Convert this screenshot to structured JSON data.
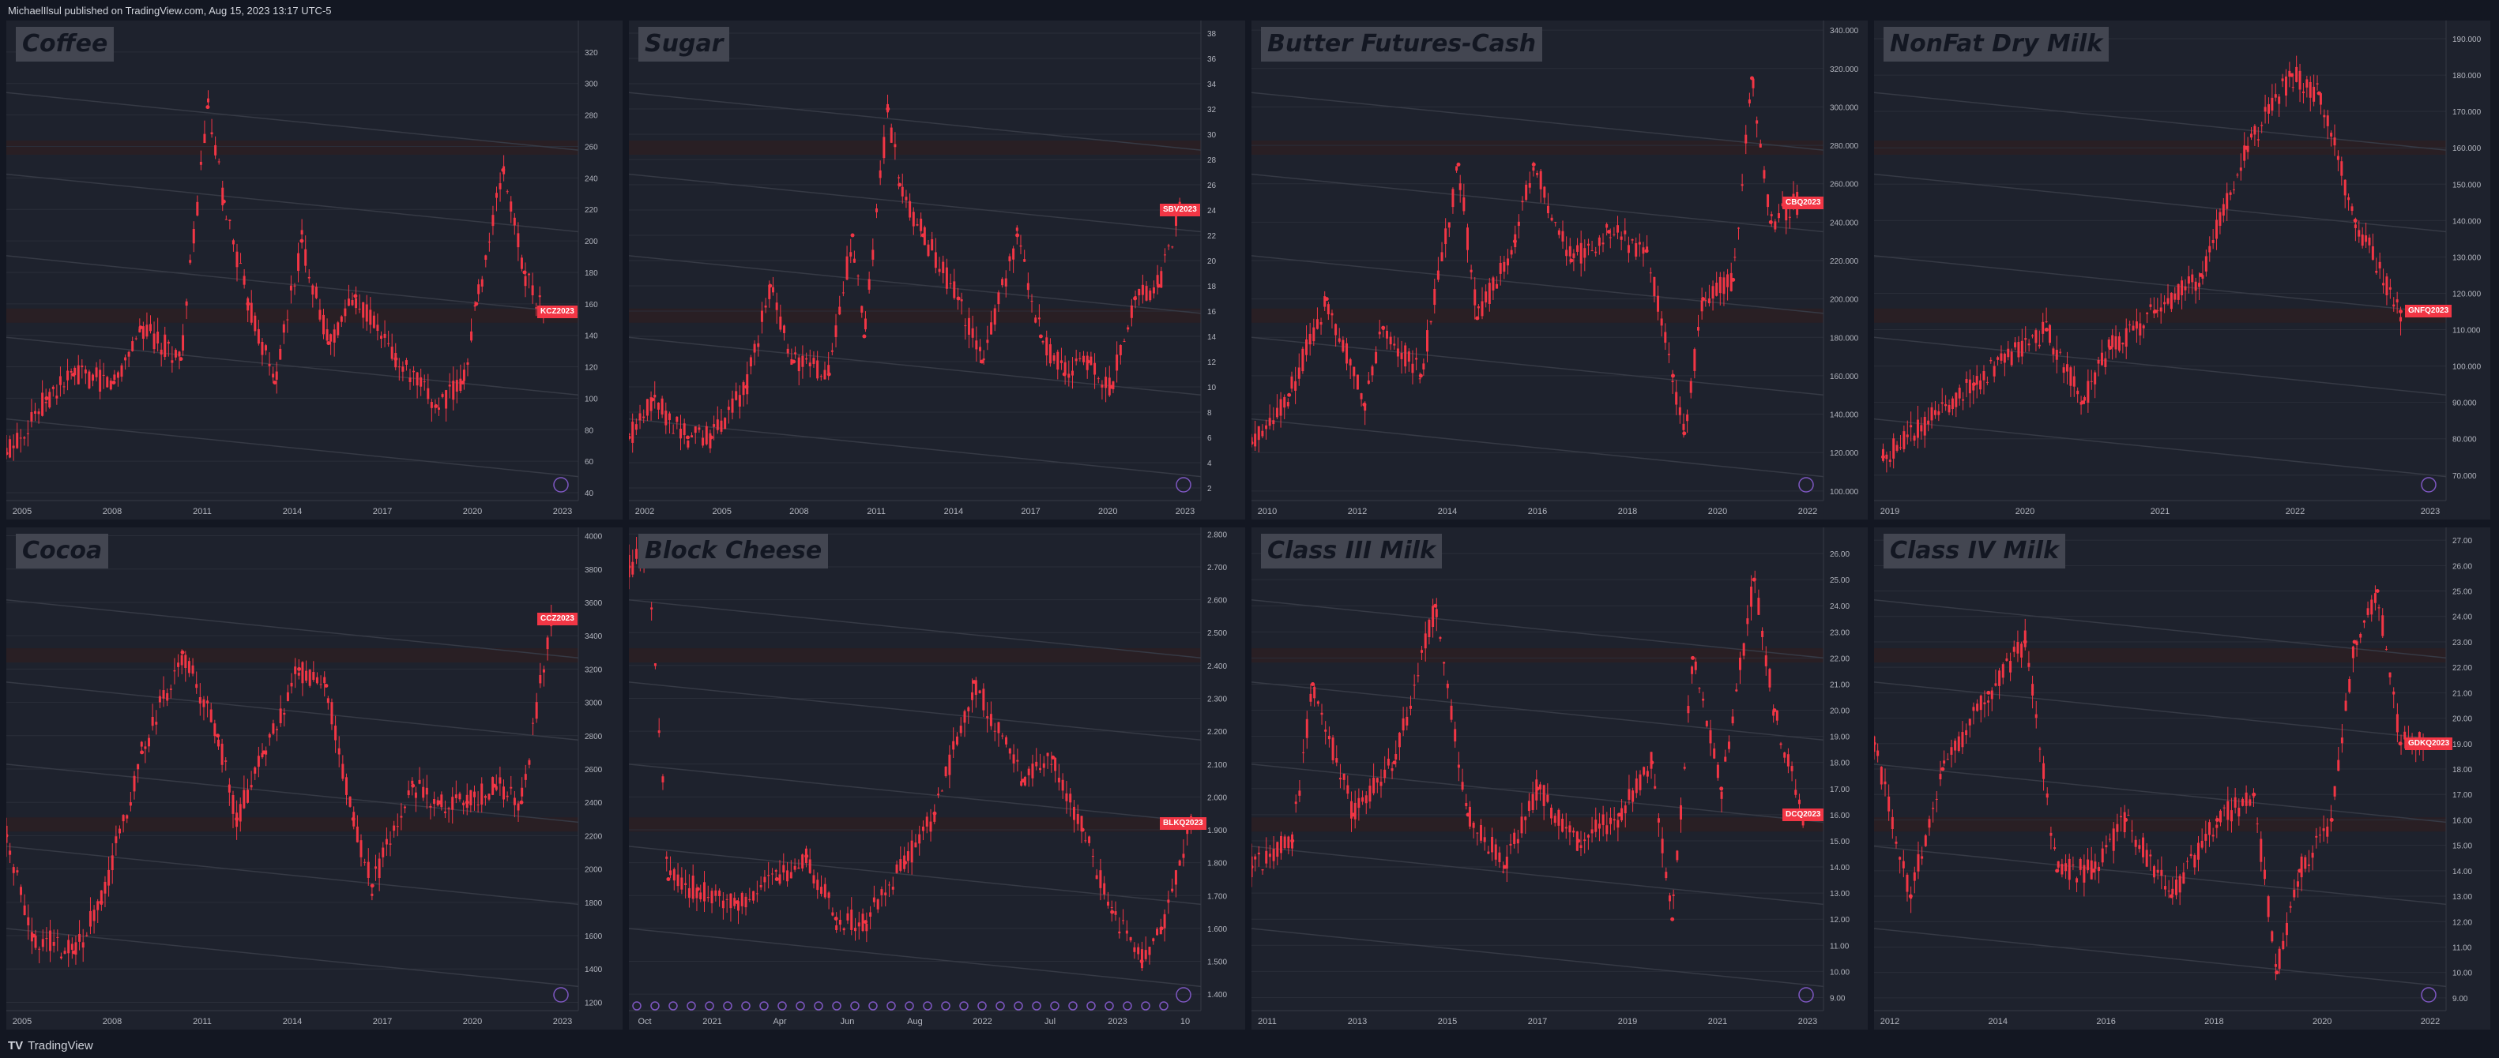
{
  "header": {
    "attribution": "MichaelIlsul published on TradingView.com, Aug 15, 2023 13:17 UTC-5"
  },
  "footer": {
    "brand_icon": "TV",
    "brand_text": "TradingView"
  },
  "colors": {
    "background": "#131722",
    "panel": "#1e222d",
    "candle": "#f23645",
    "title_bg": "#434651",
    "zone": "#2a1f24",
    "event_icon": "#7e57c2"
  },
  "chart_data": [
    {
      "type": "line",
      "title": "Coffee",
      "badge": "KCZ2023",
      "x": [
        2003.5,
        2005,
        2006,
        2007.5,
        2008.5,
        2010,
        2011,
        2011.6,
        2012.5,
        2013.5,
        2014.5,
        2015.5,
        2016.5,
        2018,
        2019.5,
        2020.5,
        2021,
        2022,
        2022.8,
        2023.5
      ],
      "y": [
        65,
        100,
        115,
        110,
        145,
        125,
        285,
        225,
        160,
        110,
        200,
        135,
        165,
        125,
        95,
        110,
        160,
        245,
        180,
        155
      ],
      "ylim": [
        35,
        340
      ],
      "xlim": [
        2003.5,
        2024.8
      ],
      "yticks": [
        "320",
        "300",
        "280",
        "260",
        "240",
        "220",
        "200",
        "180",
        "160",
        "140",
        "120",
        "100",
        "80",
        "60",
        "40"
      ],
      "xticks": [
        "2005",
        "2008",
        "2011",
        "2014",
        "2017",
        "2020",
        "2023"
      ]
    },
    {
      "type": "line",
      "title": "Sugar",
      "badge": "SBV2023",
      "x": [
        2000,
        2001,
        2002.5,
        2003.5,
        2005,
        2006,
        2007,
        2008.5,
        2009.5,
        2010,
        2011,
        2011.5,
        2012.5,
        2014,
        2015,
        2016.5,
        2017.5,
        2018.5,
        2019.5,
        2020.5,
        2021.5,
        2022.5,
        2023.4
      ],
      "y": [
        6,
        9,
        6,
        6,
        10,
        18,
        12,
        11,
        22,
        14,
        32,
        26,
        22,
        17,
        12,
        22,
        14,
        11,
        12,
        10,
        17,
        18,
        24
      ],
      "ylim": [
        1,
        39
      ],
      "xlim": [
        2000,
        2024.3
      ],
      "yticks": [
        "38",
        "36",
        "34",
        "32",
        "30",
        "28",
        "26",
        "24",
        "22",
        "20",
        "18",
        "16",
        "14",
        "12",
        "10",
        "8",
        "6",
        "4",
        "2"
      ],
      "xticks": [
        "2002",
        "2005",
        "2008",
        "2011",
        "2014",
        "2017",
        "2020",
        "2023"
      ]
    },
    {
      "type": "line",
      "title": "Butter Futures-Cash",
      "badge": "CBQ2023",
      "x": [
        2009,
        2010,
        2011,
        2012,
        2012.5,
        2013.5,
        2014.5,
        2015,
        2016,
        2016.5,
        2017.5,
        2018.5,
        2019.5,
        2020.2,
        2020.5,
        2021,
        2021.8,
        2022.3,
        2022.8,
        2023.5
      ],
      "y": [
        125,
        150,
        200,
        145,
        185,
        160,
        270,
        190,
        230,
        270,
        220,
        235,
        225,
        160,
        130,
        200,
        210,
        315,
        240,
        250
      ],
      "ylim": [
        95,
        345
      ],
      "xlim": [
        2009,
        2024.2
      ],
      "yticks": [
        "340.000",
        "320.000",
        "300.000",
        "280.000",
        "260.000",
        "240.000",
        "220.000",
        "200.000",
        "180.000",
        "160.000",
        "140.000",
        "120.000",
        "100.000"
      ],
      "xticks": [
        "2010",
        "2012",
        "2014",
        "2016",
        "2018",
        "2020",
        "2022"
      ]
    },
    {
      "type": "line",
      "title": "NonFat Dry Milk",
      "badge": "GNFQ2023",
      "x": [
        2018,
        2019,
        2019.8,
        2020.2,
        2020.5,
        2021,
        2021.5,
        2022,
        2022.5,
        2022.8,
        2023.2,
        2023.7
      ],
      "y": [
        75,
        95,
        110,
        90,
        105,
        115,
        125,
        160,
        180,
        175,
        140,
        115
      ],
      "ylim": [
        63,
        195
      ],
      "xlim": [
        2017.9,
        2024.2
      ],
      "yticks": [
        "190.000",
        "180.000",
        "170.000",
        "160.000",
        "150.000",
        "140.000",
        "130.000",
        "120.000",
        "110.000",
        "100.000",
        "90.000",
        "80.000",
        "70.000"
      ],
      "xticks": [
        "2019",
        "2020",
        "2021",
        "2022",
        "2023"
      ]
    },
    {
      "type": "line",
      "title": "Cocoa",
      "badge": "CCZ2023",
      "x": [
        2003.5,
        2004.5,
        2006,
        2007,
        2008.5,
        2010,
        2011.3,
        2012,
        2013,
        2014.3,
        2015.3,
        2016.3,
        2017,
        2018.5,
        2019.5,
        2020.5,
        2021.5,
        2022.5,
        2023.6
      ],
      "y": [
        2200,
        1600,
        1500,
        1800,
        2700,
        3300,
        2800,
        2300,
        2700,
        3200,
        3100,
        2300,
        1900,
        2500,
        2400,
        2400,
        2500,
        2400,
        3500
      ],
      "ylim": [
        1150,
        4050
      ],
      "xlim": [
        2003.5,
        2024.6
      ],
      "yticks": [
        "4000",
        "3800",
        "3600",
        "3400",
        "3200",
        "3000",
        "2800",
        "2600",
        "2400",
        "2200",
        "2000",
        "1800",
        "1600",
        "1400",
        "1200"
      ],
      "xticks": [
        "2005",
        "2008",
        "2011",
        "2014",
        "2017",
        "2020",
        "2023"
      ]
    },
    {
      "type": "line",
      "title": "Block Cheese",
      "badge": "BLKQ2023",
      "x": [
        2020.75,
        2020.85,
        2020.95,
        2021.1,
        2021.3,
        2021.5,
        2021.65,
        2021.8,
        2021.95,
        2022.15,
        2022.3,
        2022.5,
        2022.75,
        2022.9,
        2023.05,
        2023.2,
        2023.35,
        2023.45,
        2023.6
      ],
      "y": [
        2.7,
        2.75,
        1.75,
        1.72,
        1.68,
        1.75,
        1.82,
        1.63,
        1.62,
        1.8,
        1.95,
        2.35,
        2.05,
        2.12,
        1.9,
        1.65,
        1.5,
        1.6,
        1.92
      ],
      "ylim": [
        1.35,
        2.82
      ],
      "xlim": [
        2020.75,
        2023.65
      ],
      "yticks": [
        "2.800",
        "2.700",
        "2.600",
        "2.500",
        "2.400",
        "2.300",
        "2.200",
        "2.100",
        "2.000",
        "1.900",
        "1.800",
        "1.700",
        "1.600",
        "1.500",
        "1.400"
      ],
      "xticks": [
        "Oct",
        "2021",
        "Apr",
        "Jun",
        "Aug",
        "2022",
        "Jul",
        "2023",
        "10"
      ],
      "annotation": "event markers along x-axis (purple circles)"
    },
    {
      "type": "line",
      "title": "Class III Milk",
      "badge": "DCQ2023",
      "x": [
        2010,
        2011,
        2011.5,
        2012.5,
        2013.5,
        2014.5,
        2015.3,
        2016.2,
        2017,
        2018,
        2019,
        2019.8,
        2020.3,
        2020.8,
        2021.5,
        2022.3,
        2022.8,
        2023.5
      ],
      "y": [
        14,
        15,
        21,
        16,
        18,
        24,
        16,
        14,
        17,
        15,
        16,
        18,
        12,
        22,
        17,
        25,
        20,
        16
      ],
      "ylim": [
        8.5,
        27
      ],
      "xlim": [
        2010,
        2024
      ],
      "yticks": [
        "26.00",
        "25.00",
        "24.00",
        "23.00",
        "22.00",
        "21.00",
        "20.00",
        "19.00",
        "18.00",
        "17.00",
        "16.00",
        "15.00",
        "14.00",
        "13.00",
        "12.00",
        "11.00",
        "10.00",
        "9.00"
      ],
      "xticks": [
        "2011",
        "2013",
        "2015",
        "2017",
        "2019",
        "2021",
        "2023"
      ]
    },
    {
      "type": "line",
      "title": "Class IV Milk",
      "badge": "GDKQ2023",
      "x": [
        2011.5,
        2012.3,
        2013,
        2014,
        2014.8,
        2015.5,
        2016.3,
        2017,
        2018,
        2019,
        2019.8,
        2020.3,
        2020.8,
        2021.5,
        2022,
        2022.5,
        2023,
        2023.5
      ],
      "y": [
        19,
        13,
        18,
        21,
        23,
        14,
        14,
        16,
        13,
        16,
        17,
        10,
        14,
        16,
        23,
        25,
        19,
        19
      ],
      "ylim": [
        8.5,
        27.5
      ],
      "xlim": [
        2011.5,
        2024
      ],
      "yticks": [
        "27.00",
        "26.00",
        "25.00",
        "24.00",
        "23.00",
        "22.00",
        "21.00",
        "20.00",
        "19.00",
        "18.00",
        "17.00",
        "16.00",
        "15.00",
        "14.00",
        "13.00",
        "12.00",
        "11.00",
        "10.00",
        "9.00"
      ],
      "xticks": [
        "2012",
        "2014",
        "2016",
        "2018",
        "2020",
        "2022"
      ]
    }
  ]
}
